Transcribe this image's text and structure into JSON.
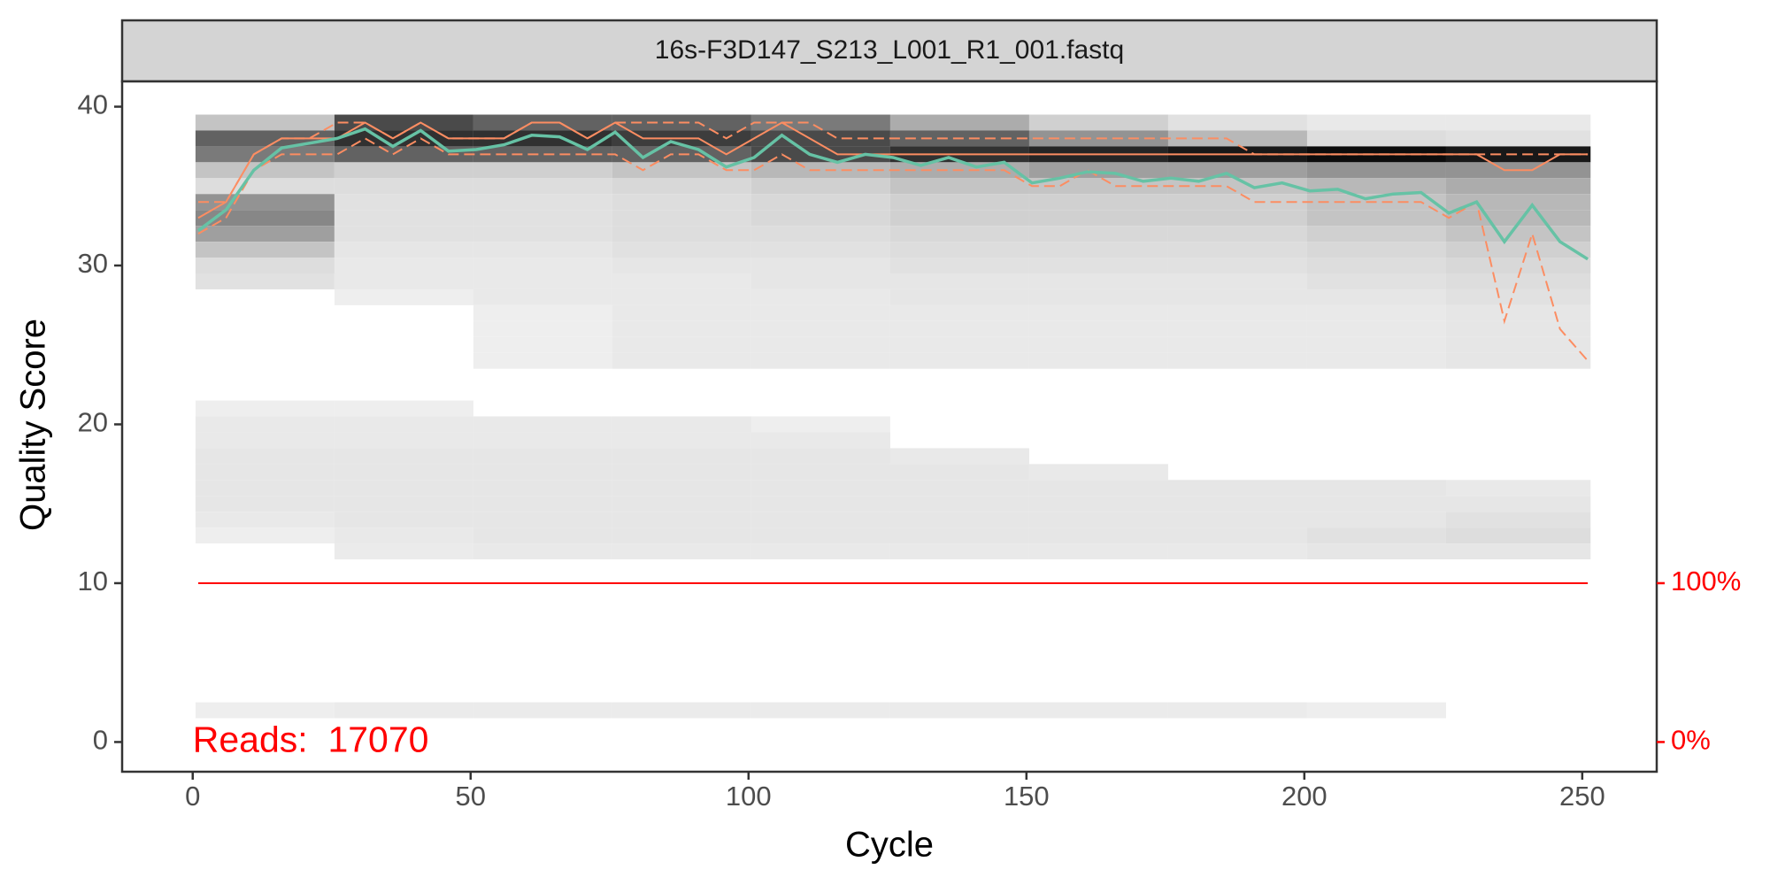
{
  "chart_data": {
    "type": "line",
    "strip_title": "16s-F3D147_S213_L001_R1_001.fastq",
    "xlabel": "Cycle",
    "ylabel": "Quality Score",
    "annotation": "Reads:  17070",
    "annotation_color": "#ff0000",
    "xlim": [
      -12.7,
      263.4
    ],
    "ylim": [
      -1.87,
      41.59
    ],
    "y2lim": [
      -18.7,
      415.9
    ],
    "xticks": [
      0,
      50,
      100,
      150,
      200,
      250
    ],
    "yticks": [
      0,
      10,
      20,
      30,
      40
    ],
    "y2ticks": [
      {
        "value": 0,
        "label": "0%"
      },
      {
        "value": 100,
        "label": "100%"
      }
    ],
    "y2_color": "#ff0000",
    "heatmap": {
      "cycle_edges": [
        0.5,
        25.5,
        50.5,
        75.5,
        100.5,
        125.5,
        150.5,
        175.5,
        200.5,
        225.5,
        251.5
      ],
      "qualities": [
        39,
        38,
        37,
        36,
        35,
        34,
        33,
        32,
        31,
        30,
        29,
        28,
        27,
        26,
        25,
        24,
        21,
        20,
        19,
        18,
        17,
        16,
        15,
        14,
        13,
        12,
        2
      ],
      "counts": [
        [
          20,
          70,
          60,
          60,
          50,
          30,
          15,
          8,
          5,
          5
        ],
        [
          60,
          80,
          80,
          75,
          70,
          60,
          40,
          25,
          10,
          8
        ],
        [
          50,
          60,
          60,
          60,
          70,
          80,
          85,
          90,
          95,
          90
        ],
        [
          20,
          15,
          15,
          20,
          25,
          30,
          35,
          35,
          40,
          40
        ],
        [
          10,
          10,
          10,
          12,
          15,
          20,
          20,
          20,
          25,
          30
        ],
        [
          40,
          8,
          8,
          10,
          12,
          15,
          15,
          15,
          20,
          25
        ],
        [
          45,
          8,
          8,
          10,
          12,
          15,
          15,
          15,
          20,
          25
        ],
        [
          35,
          8,
          8,
          10,
          10,
          12,
          12,
          12,
          15,
          20
        ],
        [
          20,
          6,
          6,
          8,
          8,
          10,
          10,
          10,
          12,
          15
        ],
        [
          10,
          5,
          5,
          6,
          6,
          8,
          8,
          8,
          10,
          12
        ],
        [
          8,
          5,
          5,
          5,
          6,
          6,
          6,
          6,
          8,
          10
        ],
        [
          0,
          3,
          5,
          5,
          5,
          6,
          6,
          6,
          6,
          8
        ],
        [
          0,
          0,
          3,
          5,
          5,
          5,
          5,
          5,
          5,
          6
        ],
        [
          0,
          0,
          3,
          5,
          5,
          5,
          5,
          5,
          5,
          6
        ],
        [
          0,
          0,
          3,
          5,
          5,
          5,
          5,
          5,
          5,
          6
        ],
        [
          0,
          0,
          3,
          5,
          5,
          5,
          5,
          5,
          5,
          6
        ],
        [
          3,
          3,
          0,
          0,
          0,
          0,
          0,
          0,
          0,
          0
        ],
        [
          5,
          5,
          5,
          5,
          3,
          0,
          0,
          0,
          0,
          0
        ],
        [
          5,
          5,
          5,
          5,
          5,
          0,
          0,
          0,
          0,
          0
        ],
        [
          6,
          6,
          6,
          6,
          6,
          5,
          0,
          0,
          0,
          0
        ],
        [
          6,
          6,
          6,
          6,
          6,
          6,
          5,
          0,
          0,
          0
        ],
        [
          6,
          6,
          6,
          6,
          6,
          6,
          6,
          6,
          6,
          5
        ],
        [
          6,
          6,
          6,
          6,
          6,
          6,
          6,
          6,
          6,
          6
        ],
        [
          5,
          6,
          6,
          6,
          6,
          6,
          6,
          6,
          6,
          8
        ],
        [
          3,
          5,
          6,
          6,
          6,
          6,
          6,
          6,
          8,
          10
        ],
        [
          0,
          4,
          5,
          5,
          5,
          5,
          5,
          5,
          6,
          6
        ],
        [
          3,
          4,
          4,
          4,
          4,
          4,
          4,
          4,
          3,
          0
        ]
      ]
    },
    "x": [
      1,
      6,
      11,
      16,
      21,
      26,
      31,
      36,
      41,
      46,
      51,
      56,
      61,
      66,
      71,
      76,
      81,
      86,
      91,
      96,
      101,
      106,
      111,
      116,
      121,
      126,
      131,
      136,
      141,
      146,
      151,
      156,
      161,
      166,
      171,
      176,
      181,
      186,
      191,
      196,
      201,
      206,
      211,
      216,
      221,
      226,
      231,
      236,
      241,
      246,
      251
    ],
    "series": [
      {
        "color": "#fc8d62",
        "dash": true,
        "values": [
          34,
          34,
          37,
          38,
          38,
          39,
          39,
          38,
          39,
          38,
          38,
          38,
          39,
          39,
          38,
          39,
          39,
          39,
          39,
          38,
          39,
          39,
          39,
          38,
          38,
          38,
          38,
          38,
          38,
          38,
          38,
          38,
          38,
          38,
          38,
          38,
          38,
          38,
          37,
          37,
          37,
          37,
          37,
          37,
          37,
          37,
          37,
          37,
          37,
          37,
          37
        ]
      },
      {
        "color": "#fc8d62",
        "dash": true,
        "values": [
          32,
          33,
          36,
          37,
          37,
          37,
          38,
          37,
          38,
          37,
          37,
          37,
          37,
          37,
          37,
          37,
          36,
          37,
          37,
          36,
          36,
          37,
          36,
          36,
          36,
          36,
          36,
          36,
          36,
          36,
          35,
          35,
          36,
          35,
          35,
          35,
          35,
          35,
          34,
          34,
          34,
          34,
          34,
          34,
          34,
          33,
          34,
          26.5,
          32,
          26,
          24
        ]
      },
      {
        "color": "#fc8d62",
        "dash": false,
        "values": [
          33,
          34,
          37,
          38,
          38,
          38,
          39,
          38,
          39,
          38,
          38,
          38,
          39,
          39,
          38,
          39,
          38,
          38,
          38,
          37,
          38,
          39,
          38,
          37,
          37,
          37,
          37,
          37,
          37,
          37,
          37,
          37,
          37,
          37,
          37,
          37,
          37,
          37,
          37,
          37,
          37,
          37,
          37,
          37,
          37,
          37,
          37,
          36,
          36,
          37,
          37
        ]
      },
      {
        "color": "#66c2a5",
        "dash": false,
        "values": [
          32.2,
          33.5,
          36.0,
          37.4,
          37.7,
          38.0,
          38.6,
          37.5,
          38.5,
          37.2,
          37.3,
          37.6,
          38.2,
          38.1,
          37.3,
          38.4,
          36.8,
          37.8,
          37.3,
          36.2,
          36.8,
          38.2,
          37.0,
          36.5,
          37.0,
          36.8,
          36.3,
          36.8,
          36.2,
          36.5,
          35.2,
          35.5,
          35.9,
          35.8,
          35.3,
          35.5,
          35.3,
          35.8,
          34.9,
          35.2,
          34.7,
          34.8,
          34.2,
          34.5,
          34.6,
          33.3,
          34.0,
          31.5,
          33.8,
          31.5,
          30.4
        ]
      },
      {
        "color": "#ff0000",
        "dash": false,
        "axis": "y2",
        "x": [
          1,
          251
        ],
        "values": [
          100,
          100
        ]
      }
    ]
  }
}
